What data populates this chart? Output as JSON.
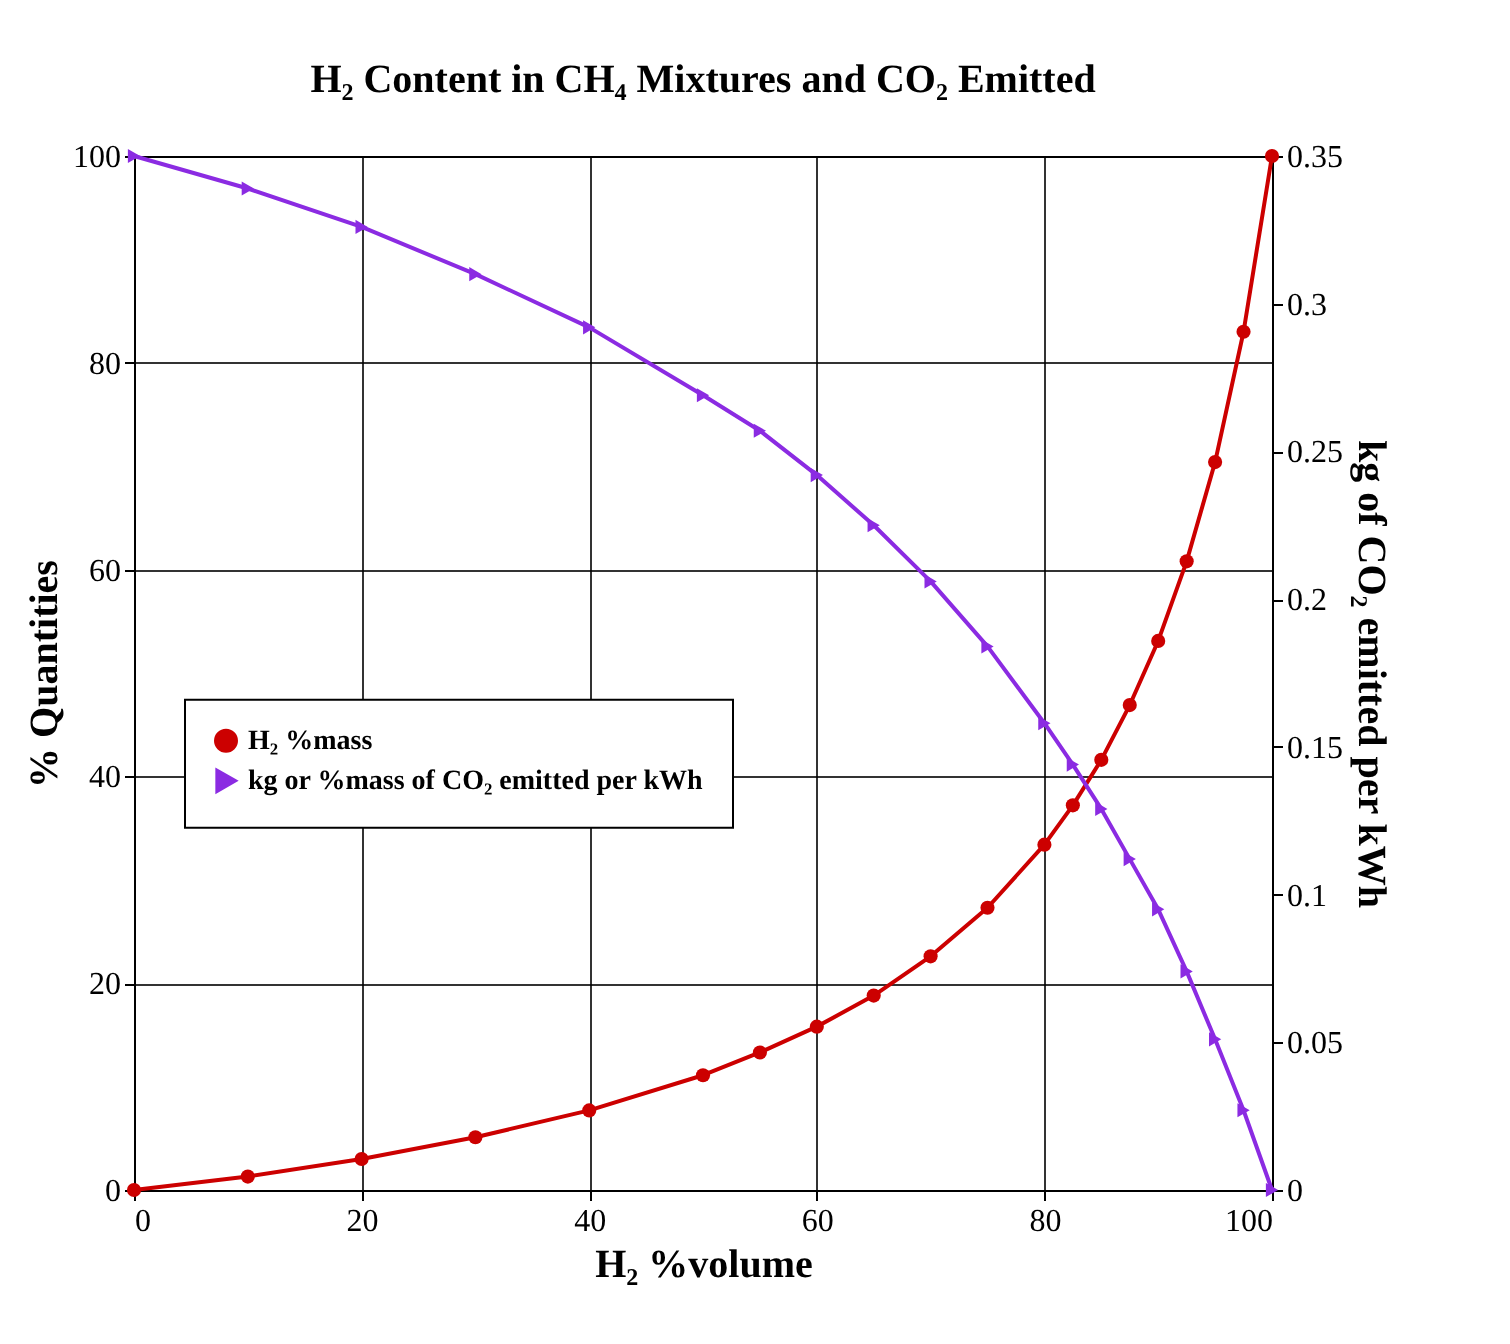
{
  "chart_data": {
    "type": "line",
    "title": "H₂ Content in CH₄ Mixtures and CO₂ Emitted",
    "xlabel": "H₂ %volume",
    "ylabel": "% Quantities",
    "y2label": "kg of CO₂ emitted per kWh",
    "x": [
      0,
      10,
      20,
      30,
      40,
      50,
      55,
      60,
      65,
      70,
      75,
      80,
      82.5,
      85,
      87.5,
      90,
      92.5,
      95,
      97.5,
      100
    ],
    "series": [
      {
        "name": "H₂ %mass",
        "color": "#cc0000",
        "marker": "circle",
        "values": [
          0,
          1.3,
          3.0,
          5.1,
          7.7,
          11.1,
          13.3,
          15.8,
          18.8,
          22.6,
          27.3,
          33.4,
          37.2,
          41.6,
          46.9,
          53.1,
          60.8,
          70.4,
          83.0,
          100
        ]
      },
      {
        "name": "kg or %mass of CO₂ emitted per kWh",
        "color": "#8b2be2",
        "marker": "triangle",
        "axis": "y2",
        "values": [
          0.35,
          0.339,
          0.326,
          0.31,
          0.292,
          0.269,
          0.257,
          0.242,
          0.225,
          0.206,
          0.184,
          0.158,
          0.144,
          0.129,
          0.112,
          0.095,
          0.074,
          0.051,
          0.027,
          0
        ]
      }
    ],
    "xlim": [
      0,
      100
    ],
    "xticks": [
      0,
      20,
      40,
      60,
      80,
      100
    ],
    "ylim": [
      0,
      100
    ],
    "yticks": [
      0,
      20,
      40,
      60,
      80,
      100
    ],
    "y2lim": [
      0,
      0.35
    ],
    "y2ticks": [
      0,
      0.05,
      0.1,
      0.15,
      0.2,
      0.25,
      0.3,
      0.35
    ],
    "grid": true,
    "legend": "center left",
    "line_style": "solid"
  }
}
